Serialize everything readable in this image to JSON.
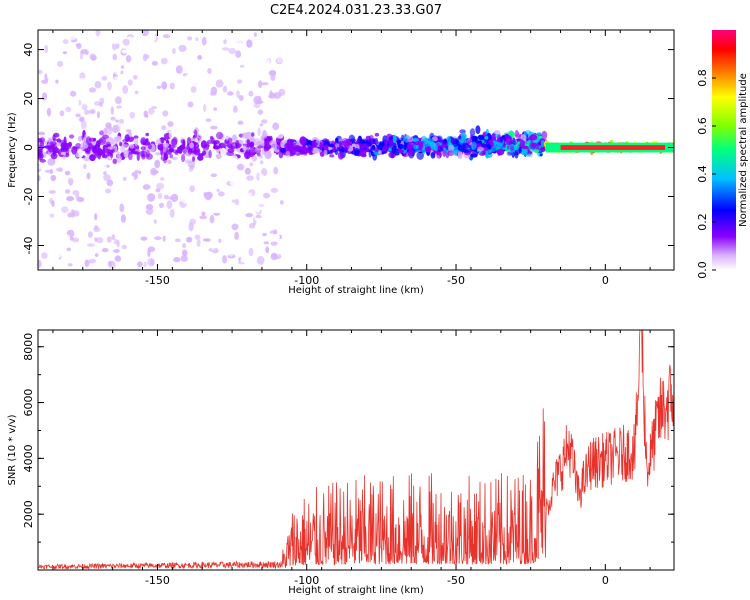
{
  "title": "C2E4.2024.031.23.33.G07",
  "chart_data": [
    {
      "type": "heatmap",
      "xlabel": "Height of straight line (km)",
      "ylabel": "Frequency (Hz)",
      "xlim": [
        -190,
        23
      ],
      "ylim": [
        -50,
        48
      ],
      "xticks": [
        -150,
        -100,
        -50,
        0
      ],
      "yticks": [
        -40,
        -20,
        0,
        20,
        40
      ],
      "colorbar": {
        "label": "Normalized spectral amplitude",
        "range": [
          0,
          1
        ],
        "ticks": [
          0.0,
          0.2,
          0.4,
          0.6,
          0.8
        ],
        "colormap": [
          "#ffffff",
          "#d9b3ff",
          "#8a00ff",
          "#0000ff",
          "#00bfff",
          "#00ff80",
          "#80ff00",
          "#ffff00",
          "#ff8000",
          "#ff0000",
          "#ff0080"
        ]
      },
      "signal": {
        "center_frequency_hz": 0,
        "segments": [
          {
            "x_from": -190,
            "x_to": -108,
            "spread_hz": 48,
            "amplitude": 0.1
          },
          {
            "x_from": -108,
            "x_to": -20,
            "spread_hz": 6,
            "amplitude": 0.3
          },
          {
            "x_from": -20,
            "x_to": 23,
            "spread_hz": 2,
            "amplitude": 0.9
          }
        ]
      }
    },
    {
      "type": "line",
      "xlabel": "Height of straight line (km)",
      "ylabel": "SNR (10 * v/v)",
      "xlim": [
        -190,
        23
      ],
      "ylim": [
        0,
        8600
      ],
      "xticks": [
        -150,
        -100,
        -50,
        0
      ],
      "yticks": [
        2000,
        4000,
        6000,
        8000
      ],
      "color": "#e8322c",
      "trend": [
        {
          "x": -190,
          "y": 150
        },
        {
          "x": -108,
          "y": 250
        },
        {
          "x": -104,
          "y": 800
        },
        {
          "x": -85,
          "y": 1000
        },
        {
          "x": -65,
          "y": 1050
        },
        {
          "x": -40,
          "y": 1000
        },
        {
          "x": -25,
          "y": 1100
        },
        {
          "x": -20,
          "y": 2200
        },
        {
          "x": -12,
          "y": 4500
        },
        {
          "x": -9,
          "y": 2700
        },
        {
          "x": -5,
          "y": 3800
        },
        {
          "x": 10,
          "y": 4300
        },
        {
          "x": 12,
          "y": 8600
        },
        {
          "x": 14,
          "y": 3500
        },
        {
          "x": 18,
          "y": 5500
        },
        {
          "x": 23,
          "y": 6300
        }
      ]
    }
  ]
}
